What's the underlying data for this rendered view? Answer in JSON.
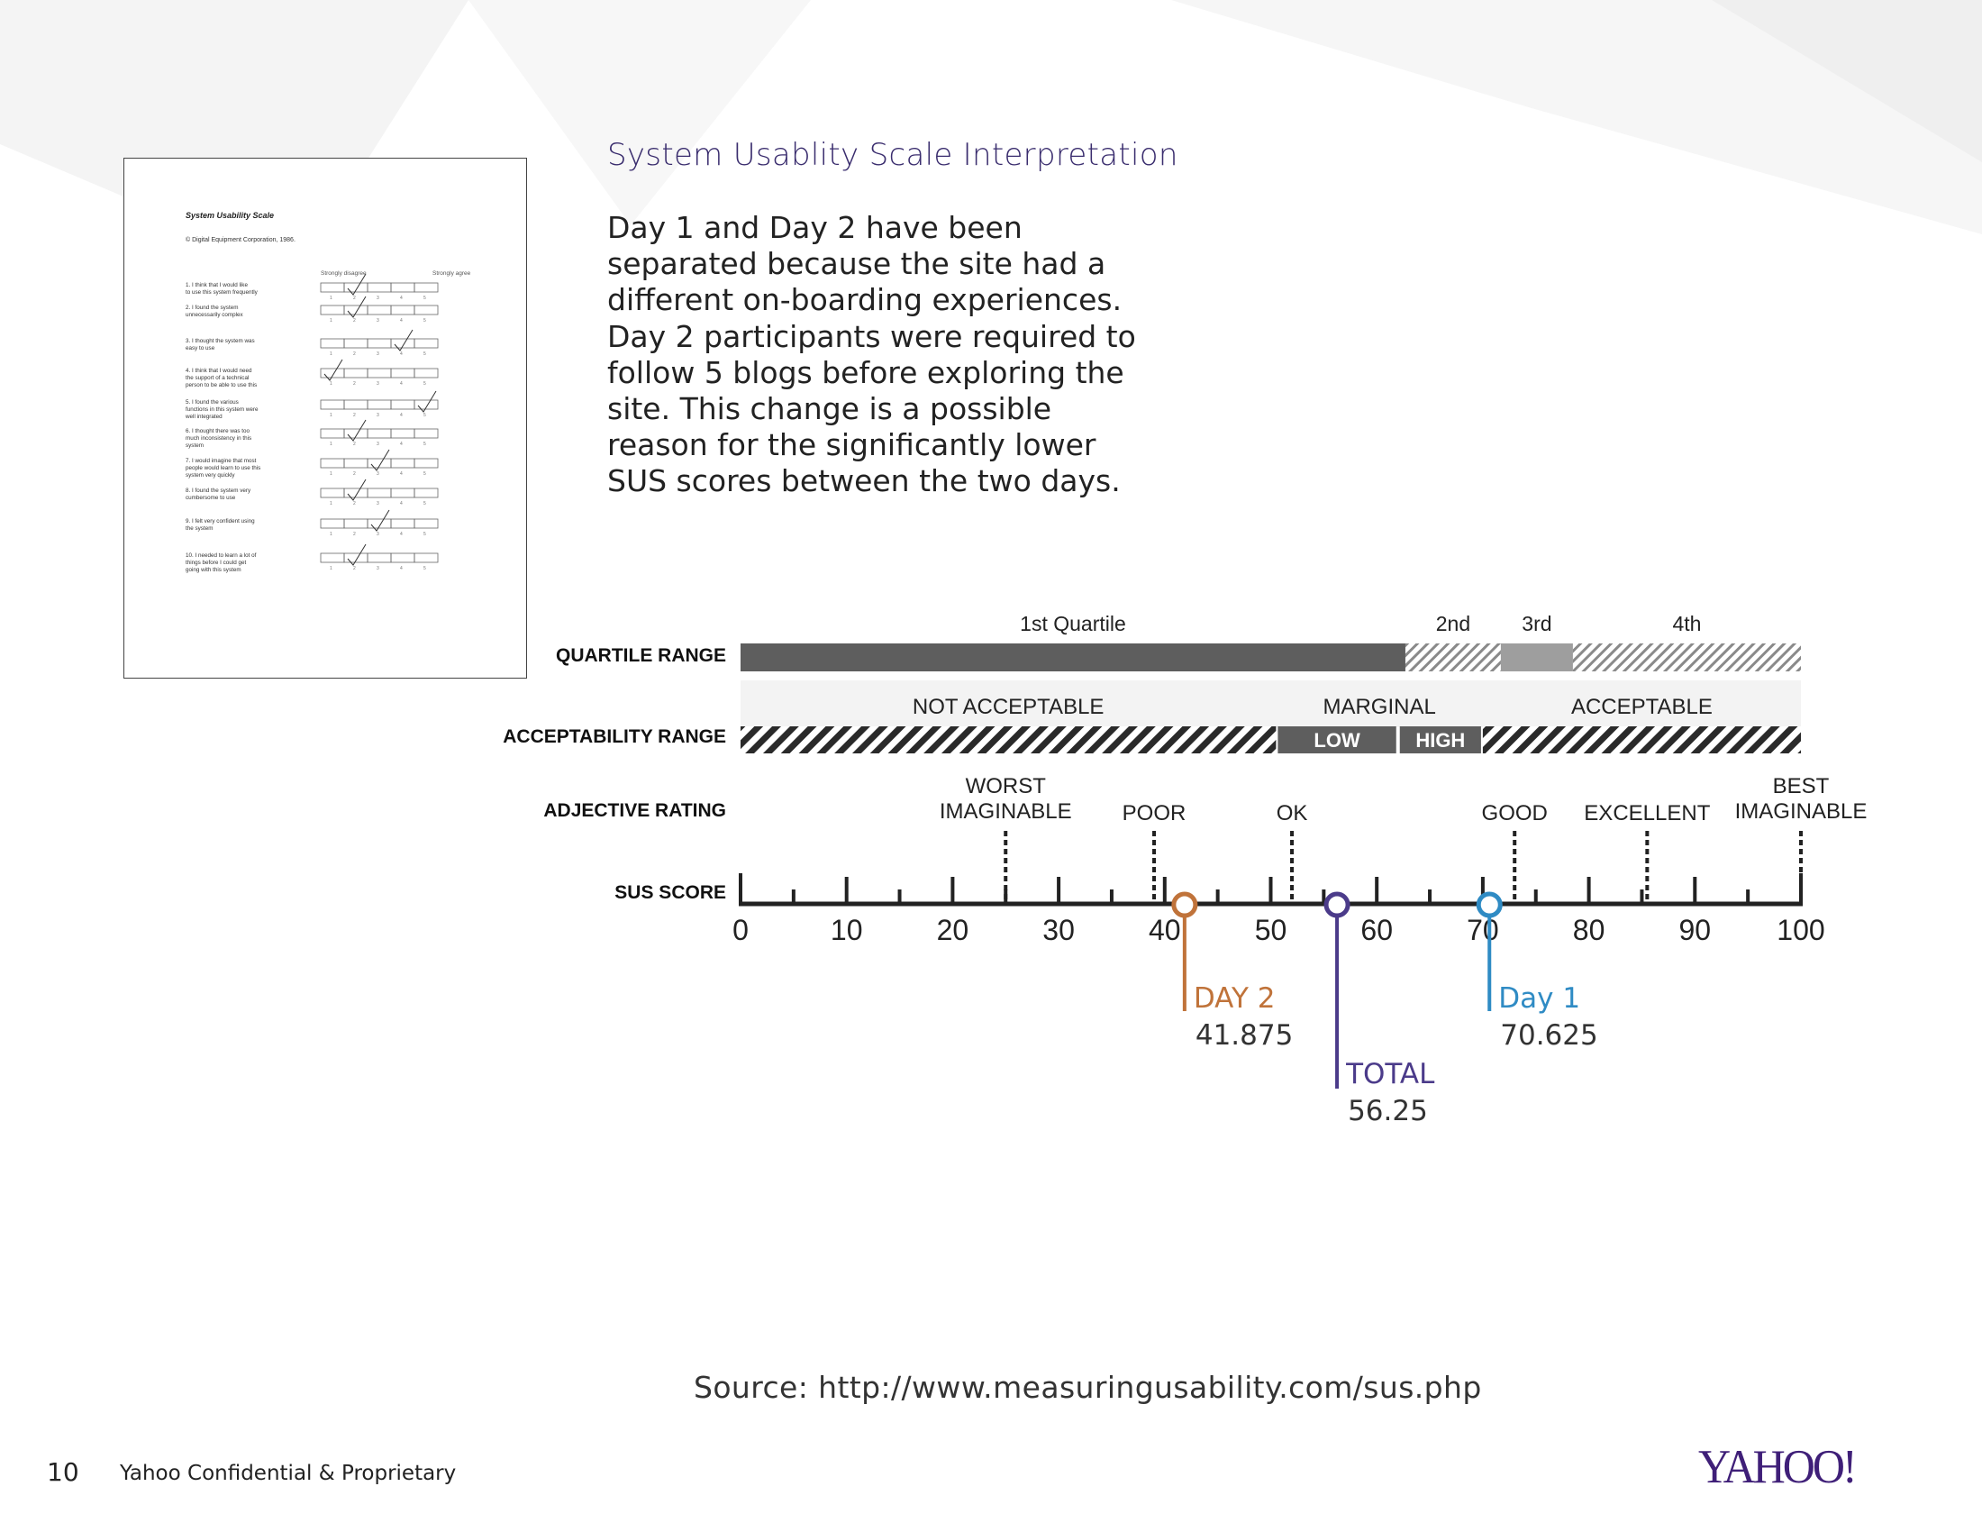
{
  "slide": {
    "title": "System Usablity Scale Interpretation",
    "paragraph": "Day 1 and Day 2 have been separated because the site had a different on-boarding experiences. Day 2 participants were required to follow 5 blogs before exploring the site. This change is a possible reason for the significantly lower SUS scores between the two days.",
    "source": "Source: http://www.measuringusability.com/sus.php",
    "page_number": "10",
    "confidential": "Yahoo Confidential & Proprietary",
    "logo": "YAHOO!"
  },
  "questionnaire": {
    "heading": "System Usability Scale",
    "copyright": "© Digital Equipment Corporation, 1986.",
    "disagree": "Strongly disagree",
    "agree": "Strongly agree",
    "scale": [
      "1",
      "2",
      "3",
      "4",
      "5"
    ],
    "items": [
      {
        "text": "1. I think that I would like to use this system frequently",
        "check": 2
      },
      {
        "text": "2. I found the system unnecessarily complex",
        "check": 2
      },
      {
        "text": "3. I thought the system was easy to use",
        "check": 4
      },
      {
        "text": "4. I think that I would need the support of a technical person to be able to use this system",
        "check": 1
      },
      {
        "text": "5. I found the various functions in this system were well integrated",
        "check": 5
      },
      {
        "text": "6. I thought there was too much inconsistency in this system",
        "check": 2
      },
      {
        "text": "7. I would imagine that most people would learn to use this system very quickly",
        "check": 3
      },
      {
        "text": "8. I found the system very cumbersome to use",
        "check": 2
      },
      {
        "text": "9. I felt very confident using the system",
        "check": 3
      },
      {
        "text": "10. I needed to learn a lot of things before I could get going with this system",
        "check": 2
      }
    ]
  },
  "chart_data": {
    "type": "scale",
    "title": "System Usablity Scale Interpretation",
    "axis": {
      "label": "SUS SCORE",
      "min": 0,
      "max": 100,
      "ticks": [
        0,
        10,
        20,
        30,
        40,
        50,
        60,
        70,
        80,
        90,
        100
      ],
      "tick_labels": [
        "0",
        "10",
        "20",
        "30",
        "40",
        "50",
        "60",
        "70",
        "80",
        "90",
        "100"
      ]
    },
    "row_labels": [
      "QUARTILE RANGE",
      "ACCEPTABILITY RANGE",
      "ADJECTIVE RATING",
      "SUS SCORE"
    ],
    "quartiles": [
      {
        "label": "1st Quartile",
        "start": 0,
        "end": 62.7,
        "style": "solid"
      },
      {
        "label": "2nd",
        "start": 62.7,
        "end": 71.7,
        "style": "hatched"
      },
      {
        "label": "3rd",
        "start": 71.7,
        "end": 78.5,
        "style": "light"
      },
      {
        "label": "4th",
        "start": 78.5,
        "end": 100,
        "style": "hatched"
      }
    ],
    "acceptability": [
      {
        "label": "NOT ACCEPTABLE",
        "start": 0,
        "end": 50.5
      },
      {
        "label": "MARGINAL",
        "start": 50.5,
        "end": 70,
        "sub": [
          {
            "label": "LOW",
            "start": 50.5,
            "end": 62
          },
          {
            "label": "HIGH",
            "start": 62,
            "end": 70
          }
        ]
      },
      {
        "label": "ACCEPTABLE",
        "start": 70,
        "end": 100
      }
    ],
    "adjectives": [
      {
        "label": "WORST",
        "label2": "IMAGINABLE",
        "value": 25
      },
      {
        "label": "POOR",
        "label2": "",
        "value": 39
      },
      {
        "label": "OK",
        "label2": "",
        "value": 52
      },
      {
        "label": "GOOD",
        "label2": "",
        "value": 73
      },
      {
        "label": "EXCELLENT",
        "label2": "",
        "value": 85.5
      },
      {
        "label": "BEST",
        "label2": "IMAGINABLE",
        "value": 100
      }
    ],
    "scores": [
      {
        "name": "DAY 2",
        "value": 41.875,
        "value_label": "41.875",
        "color": "#c0733a",
        "drop": "short"
      },
      {
        "name": "TOTAL",
        "value": 56.25,
        "value_label": "56.25",
        "color": "#4b3b8a",
        "drop": "long"
      },
      {
        "name": "Day 1",
        "value": 70.625,
        "value_label": "70.625",
        "color": "#2f8bc4",
        "drop": "short"
      }
    ]
  }
}
